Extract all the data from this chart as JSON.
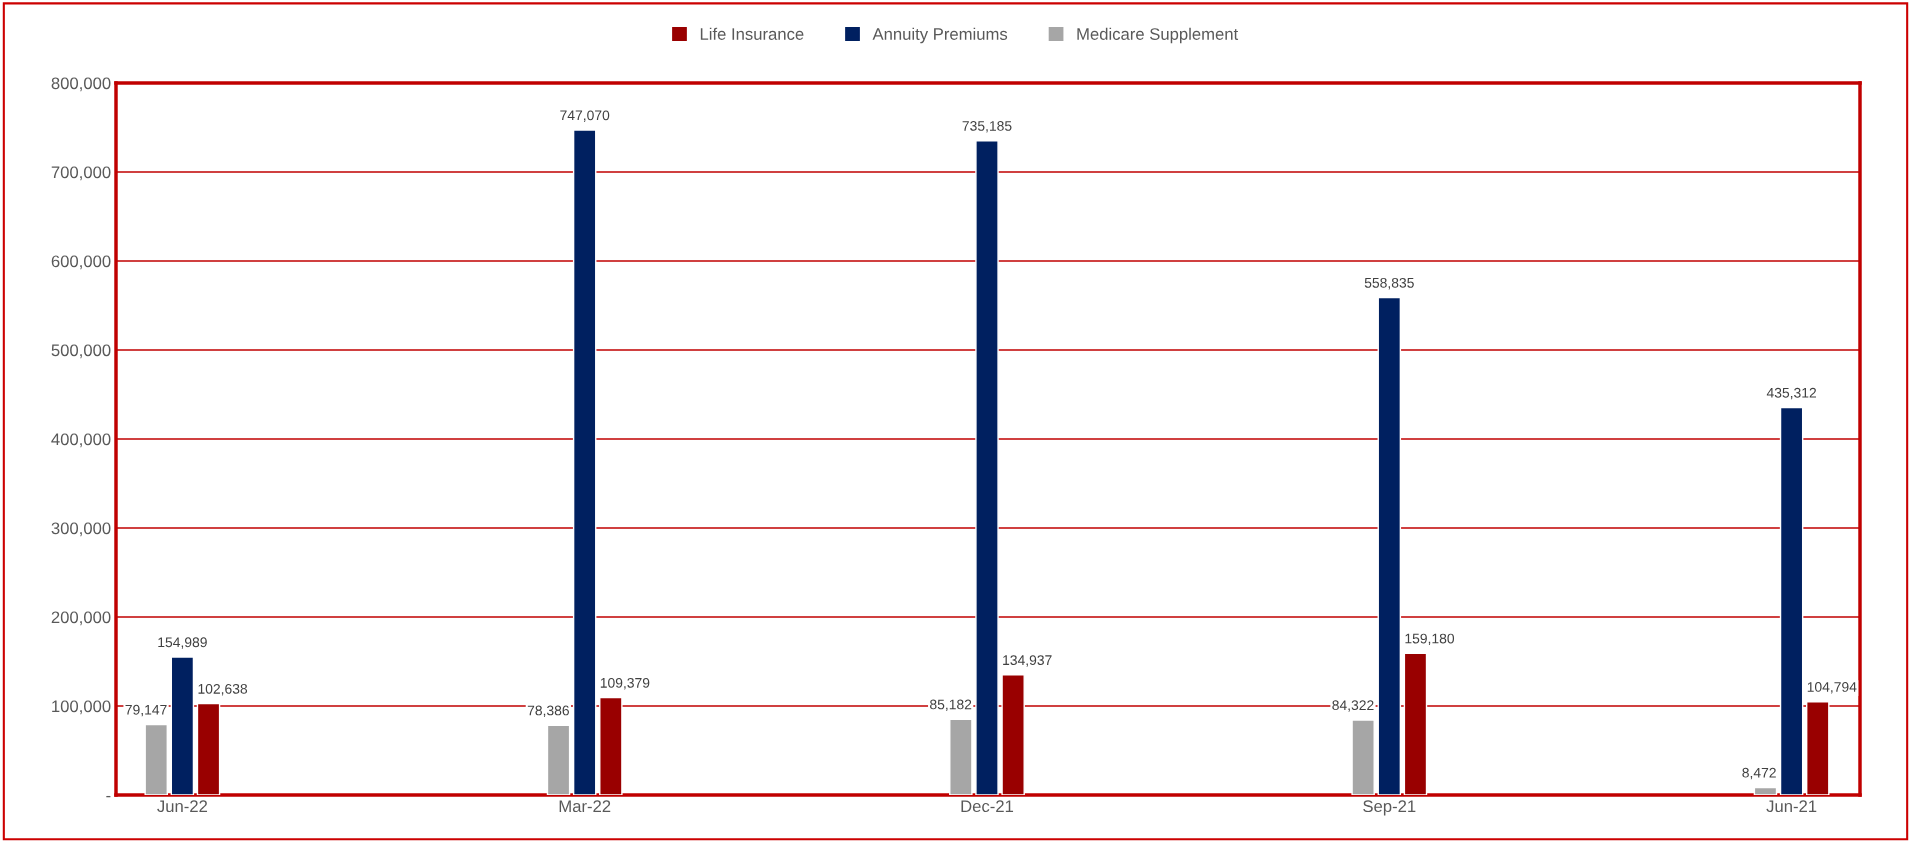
{
  "chart_data": {
    "type": "bar",
    "categories": [
      "Jun-22",
      "Mar-22",
      "Dec-21",
      "Sep-21",
      "Jun-21"
    ],
    "series": [
      {
        "name": "Life Insurance",
        "color": "#990000",
        "values": [
          102638,
          109379,
          134937,
          159180,
          104794
        ],
        "value_labels": [
          "102,638",
          "109,379",
          "134,937",
          "159,180",
          "104,794"
        ]
      },
      {
        "name": "Annuity Premiums",
        "color": "#002060",
        "values": [
          154989,
          747070,
          735185,
          558835,
          435312
        ],
        "value_labels": [
          "154,989",
          "747,070",
          "735,185",
          "558,835",
          "435,312"
        ]
      },
      {
        "name": "Medicare Supplement",
        "color": "#a6a6a6",
        "values": [
          79147,
          78386,
          85182,
          84322,
          8472
        ],
        "value_labels": [
          "79,147",
          "78,386",
          "85,182",
          "84,322",
          "8,472"
        ]
      }
    ],
    "ylim": [
      0,
      800000
    ],
    "yticks": [
      {
        "value": 0,
        "label": "-"
      },
      {
        "value": 100000,
        "label": "100,000"
      },
      {
        "value": 200000,
        "label": "200,000"
      },
      {
        "value": 300000,
        "label": "300,000"
      },
      {
        "value": 400000,
        "label": "400,000"
      },
      {
        "value": 500000,
        "label": "500,000"
      },
      {
        "value": 600000,
        "label": "600,000"
      },
      {
        "value": 700000,
        "label": "700,000"
      },
      {
        "value": 800000,
        "label": "800,000"
      }
    ],
    "grid": "y",
    "legend": "top"
  }
}
